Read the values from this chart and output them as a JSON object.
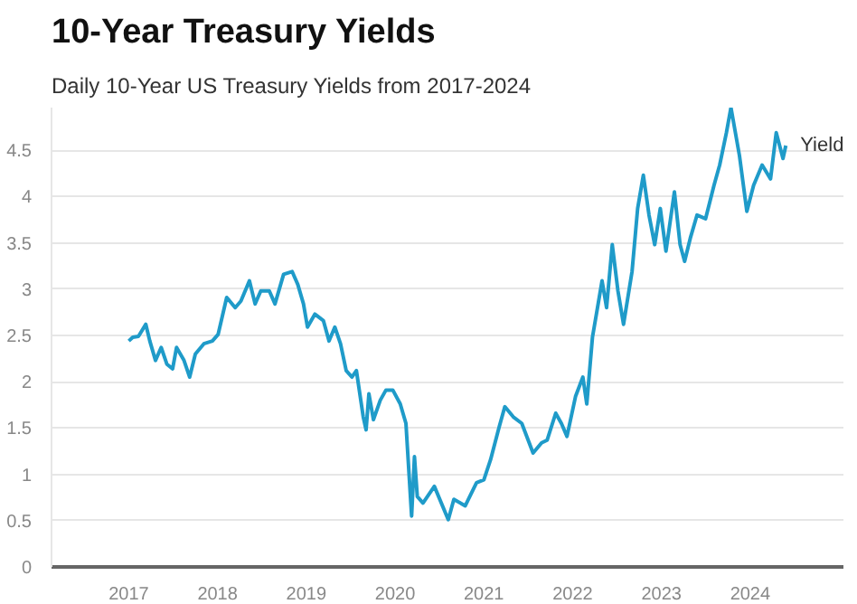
{
  "chart_data": {
    "type": "line",
    "title": "10-Year Treasury Yields",
    "subtitle": "Daily 10-Year US Treasury Yields from 2017-2024",
    "x": [
      2017.0,
      2017.045,
      2017.109,
      2017.192,
      2017.237,
      2017.301,
      2017.365,
      2017.429,
      2017.494,
      2017.538,
      2017.622,
      2017.686,
      2017.75,
      2017.846,
      2017.942,
      2018.006,
      2018.103,
      2018.199,
      2018.263,
      2018.359,
      2018.423,
      2018.487,
      2018.583,
      2018.647,
      2018.744,
      2018.84,
      2018.904,
      2018.968,
      2019.013,
      2019.096,
      2019.192,
      2019.256,
      2019.321,
      2019.385,
      2019.449,
      2019.513,
      2019.564,
      2019.641,
      2019.673,
      2019.705,
      2019.756,
      2019.833,
      2019.897,
      2019.974,
      2020.058,
      2020.122,
      2020.186,
      2020.218,
      2020.25,
      2020.314,
      2020.442,
      2020.599,
      2020.662,
      2020.79,
      2020.917,
      2021.0,
      2021.076,
      2021.172,
      2021.236,
      2021.331,
      2021.427,
      2021.554,
      2021.65,
      2021.713,
      2021.809,
      2021.873,
      2021.936,
      2022.032,
      2022.115,
      2022.159,
      2022.223,
      2022.287,
      2022.331,
      2022.382,
      2022.446,
      2022.51,
      2022.573,
      2022.669,
      2022.732,
      2022.796,
      2022.86,
      2022.924,
      2022.987,
      2023.051,
      2023.146,
      2023.21,
      2023.261,
      2023.325,
      2023.401,
      2023.497,
      2023.592,
      2023.656,
      2023.732,
      2023.783,
      2023.879,
      2023.962,
      2024.038,
      2024.134,
      2024.229,
      2024.293,
      2024.369,
      2024.401
    ],
    "series": [
      {
        "name": "Yield",
        "color": "#1f9bc9",
        "values": [
          2.44,
          2.48,
          2.49,
          2.62,
          2.44,
          2.23,
          2.37,
          2.19,
          2.14,
          2.37,
          2.23,
          2.05,
          2.3,
          2.41,
          2.44,
          2.51,
          2.91,
          2.8,
          2.87,
          3.09,
          2.84,
          2.98,
          2.98,
          2.84,
          3.16,
          3.19,
          3.05,
          2.84,
          2.59,
          2.73,
          2.66,
          2.44,
          2.59,
          2.41,
          2.12,
          2.05,
          2.12,
          1.62,
          1.48,
          1.87,
          1.59,
          1.8,
          1.91,
          1.91,
          1.76,
          1.55,
          0.55,
          1.19,
          0.76,
          0.69,
          0.87,
          0.51,
          0.73,
          0.66,
          0.91,
          0.94,
          1.16,
          1.51,
          1.73,
          1.62,
          1.55,
          1.23,
          1.34,
          1.37,
          1.66,
          1.55,
          1.41,
          1.84,
          2.05,
          1.76,
          2.48,
          2.84,
          3.09,
          2.8,
          3.48,
          2.98,
          2.62,
          3.19,
          3.87,
          4.23,
          3.8,
          3.48,
          3.87,
          3.41,
          4.05,
          3.48,
          3.3,
          3.55,
          3.8,
          3.76,
          4.12,
          4.34,
          4.69,
          4.96,
          4.44,
          3.84,
          4.12,
          4.34,
          4.19,
          4.69,
          4.41,
          4.55
        ]
      }
    ],
    "xlim": [
      2016.13,
      2025.05
    ],
    "ylim": [
      0,
      4.96
    ],
    "xticks": [
      2017,
      2018,
      2019,
      2020,
      2021,
      2022,
      2023,
      2024
    ],
    "yticks": [
      0,
      0.5,
      1,
      1.5,
      2,
      2.5,
      3,
      3.5,
      4,
      4.5
    ],
    "grid": "y",
    "line_style": "solid",
    "marker": "none"
  }
}
